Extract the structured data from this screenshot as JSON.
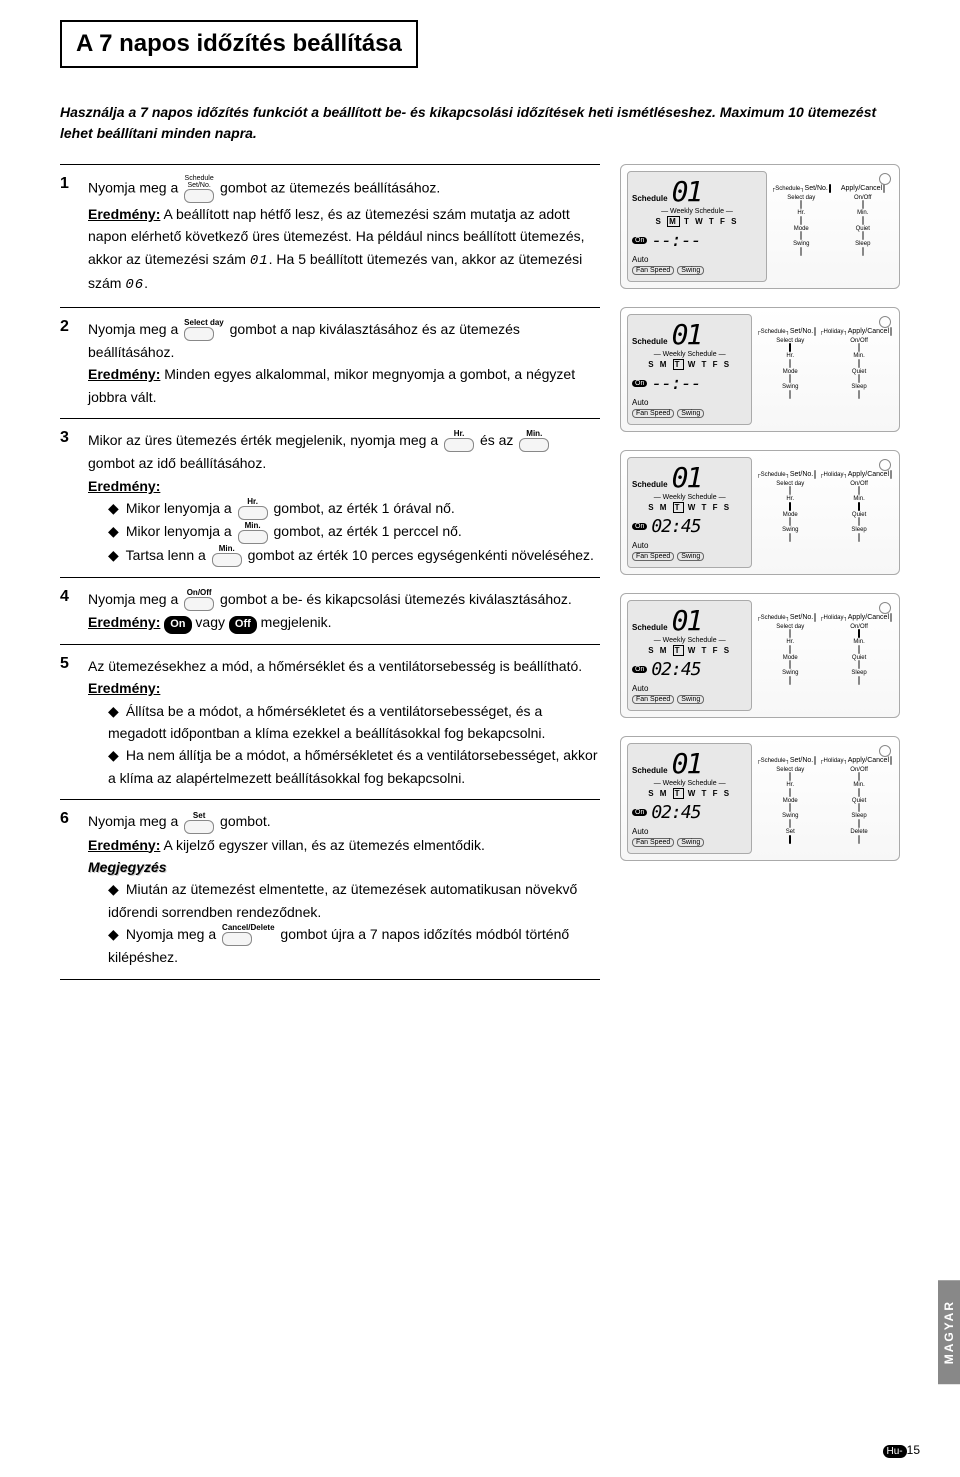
{
  "title": "A 7 napos időzítés beállítása",
  "intro": "Használja a 7 napos időzítés funkciót a beállított be- és kikapcsolási időzítések heti ismétléseshez. Maximum 10 ütemezést lehet beállítani minden napra.",
  "steps": {
    "s1": {
      "num": "1",
      "t1": "Nyomja meg a",
      "t2": "gombot az ütemezés beállításához.",
      "result_label": "Eredmény:",
      "result": "A beállított nap hétfő lesz, és az ütemezési szám mutatja az adott napon elérhető következő üres ütemezést. Ha például nincs beállított ütemezés, akkor az ütemezési szám ",
      "seg1": "01",
      "result2": ".\nHa 5 beállított ütemezés van, akkor az ütemezési szám ",
      "seg2": "06",
      "result3": "."
    },
    "s2": {
      "num": "2",
      "t1": "Nyomja meg a",
      "t2": "gombot a nap kiválasztásához és az ütemezés beállításához.",
      "result_label": "Eredmény:",
      "result": "Minden egyes alkalommal, mikor megnyomja a gombot, a négyzet jobbra vált."
    },
    "s3": {
      "num": "3",
      "t1": "Mikor az üres ütemezés érték megjelenik, nyomja meg a",
      "t2": "és az",
      "t3": "gombot az idő beállításához.",
      "result_label": "Eredmény:",
      "b1a": "Mikor lenyomja a",
      "b1b": "gombot, az érték 1 órával nő.",
      "b2a": "Mikor lenyomja a",
      "b2b": "gombot, az érték 1 perccel nő.",
      "b3a": "Tartsa lenn a",
      "b3b": "gombot az érték 10 perces egységenkénti növeléséhez."
    },
    "s4": {
      "num": "4",
      "t1": "Nyomja meg a",
      "t2": "gombot a be- és kikapcsolási ütemezés kiválasztásához.",
      "result_label": "Eredmény:",
      "on": "On",
      "mid": "vagy",
      "off": "Off",
      "end": "megjelenik."
    },
    "s5": {
      "num": "5",
      "t1": "Az ütemezésekhez a mód, a hőmérséklet és a ventilátorsebesség is beállítható.",
      "result_label": "Eredmény:",
      "b1": "Állítsa be a módot, a hőmérsékletet és a ventilátorsebességet, és a megadott időpontban a klíma ezekkel a beállításokkal fog bekapcsolni.",
      "b2": "Ha nem állítja be a módot, a hőmérsékletet és a ventilátorsebességet, akkor a klíma az alapértelmezett beállításokkal fog bekapcsolni."
    },
    "s6": {
      "num": "6",
      "t1": "Nyomja meg a",
      "t2": "gombot.",
      "result_label": "Eredmény:",
      "result": "A kijelző egyszer villan, és az ütemezés elmentődik.",
      "note_label": "Megjegyzés",
      "b1": "Miután az ütemezést elmentette, az ütemezések automatikusan növekvő időrendi sorrendben rendeződnek.",
      "b2a": "Nyomja meg a",
      "b2b": "gombot újra a 7 napos időzítés módból történő kilépéshez."
    }
  },
  "buttons": {
    "schedule_top": "Schedule",
    "schedule_bottom": "Set/No.",
    "selectday": "Select day",
    "hr": "Hr.",
    "min": "Min.",
    "onoff": "On/Off",
    "set": "Set",
    "canceldelete": "Cancel/Delete"
  },
  "remote": {
    "schedule_label": "Schedule",
    "weekly": "— Weekly Schedule —",
    "days_SMTWTFS": "SMTWTFS",
    "on": "On",
    "dashes": "--:--",
    "time": "02:45",
    "auto": "Auto",
    "fanspeed": "Fan Speed",
    "swing": "Swing",
    "header_schedule": "Schedule",
    "header_setno": "Set/No.",
    "header_holiday": "Holiday",
    "header_applycancel": "Apply/Cancel",
    "btn_selectday": "Select day",
    "btn_onoff": "On/Off",
    "btn_hr": "Hr.",
    "btn_min": "Min.",
    "btn_mode": "Mode",
    "btn_quiet": "Quiet",
    "btn_swing": "Swing",
    "btn_sleep": "Sleep",
    "btn_set": "Set",
    "btn_delete": "Delete",
    "btn_cancel": "Cancel",
    "num01": "01"
  },
  "side_tab": "MAGYAR",
  "footer": {
    "prefix": "Hu-",
    "num": "15"
  }
}
